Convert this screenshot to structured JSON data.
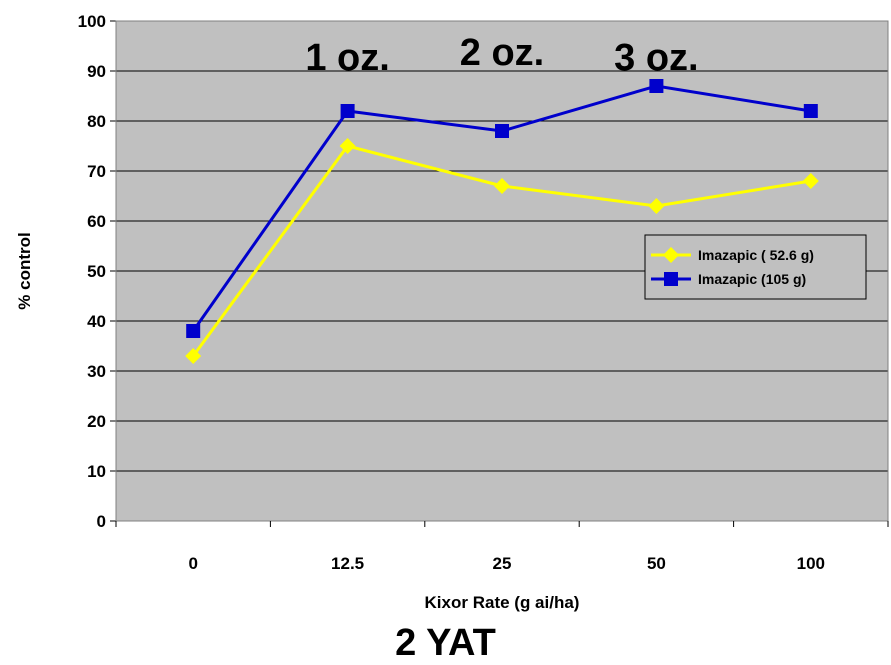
{
  "chart_data": {
    "type": "line",
    "categories": [
      "0",
      "12.5",
      "25",
      "50",
      "100"
    ],
    "series": [
      {
        "name": "Imazapic ( 52.6 g)",
        "values": [
          33,
          75,
          67,
          63,
          68
        ],
        "color": "#FFFF00",
        "marker": "diamond"
      },
      {
        "name": "Imazapic (105 g)",
        "values": [
          38,
          82,
          78,
          87,
          82
        ],
        "color": "#0000CC",
        "marker": "square"
      }
    ],
    "xlabel": "Kixor Rate (g ai/ha)",
    "ylabel": "% control",
    "ylim": [
      0,
      100
    ],
    "yticks": [
      0,
      10,
      20,
      30,
      40,
      50,
      60,
      70,
      80,
      90,
      100
    ],
    "grid": true,
    "plot_background": "#C0C0C0",
    "legend_position": "right",
    "annotations": [
      {
        "text": "1 oz.",
        "category": "12.5",
        "y": 93
      },
      {
        "text": "2 oz.",
        "category": "25",
        "y": 94
      },
      {
        "text": "3 oz.",
        "category": "50",
        "y": 93
      }
    ]
  },
  "caption": "2 YAT"
}
